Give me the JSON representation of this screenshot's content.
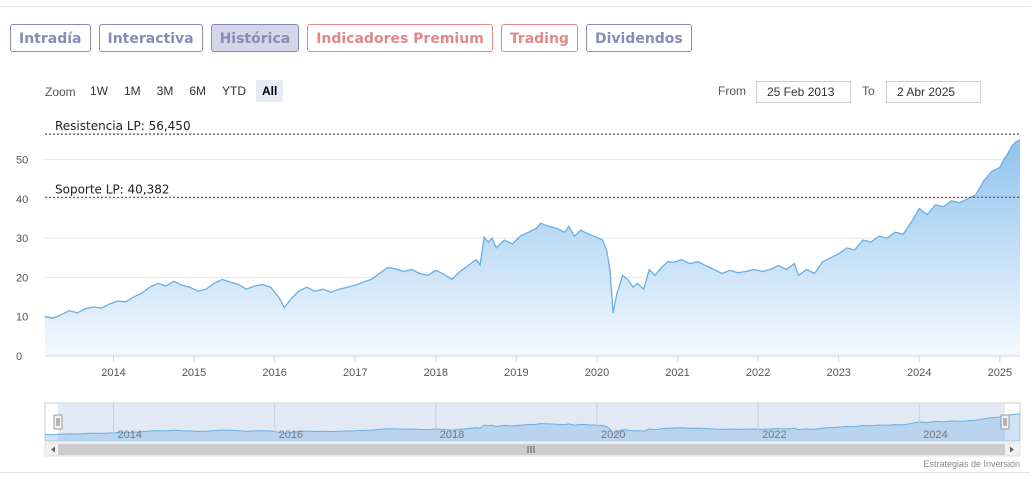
{
  "tabs": [
    {
      "label": "Intradía",
      "color": "#8a8ab8",
      "active": false
    },
    {
      "label": "Interactiva",
      "color": "#8a8ab8",
      "active": false
    },
    {
      "label": "Histórica",
      "color": "#8a8ab8",
      "active": true
    },
    {
      "label": "Indicadores Premium",
      "color": "#e0898a",
      "active": false
    },
    {
      "label": "Trading",
      "color": "#e0898a",
      "active": false
    },
    {
      "label": "Dividendos",
      "color": "#8a8ab8",
      "active": false
    }
  ],
  "zoom": {
    "label": "Zoom",
    "buttons": [
      "1W",
      "1M",
      "3M",
      "6M",
      "YTD",
      "All"
    ],
    "active": "All"
  },
  "range": {
    "from_label": "From",
    "from_value": "25 Feb 2013",
    "to_label": "To",
    "to_value": "2 Abr 2025"
  },
  "credit": "Estrategias de Inversión",
  "colors": {
    "line": "#6aaee3",
    "area_top": "#8fc3ee",
    "area_bottom": "#f4f9fe",
    "navigator_bg": "#dbe3f2",
    "navigator_line": "#6aaee3",
    "resistance": "#222222",
    "support": "#8a1c2c"
  },
  "chart_data": {
    "type": "area",
    "ylim": [
      0,
      57
    ],
    "y_ticks": [
      0,
      10,
      20,
      30,
      40,
      50
    ],
    "x_ticks": [
      "2014",
      "2015",
      "2016",
      "2017",
      "2018",
      "2019",
      "2020",
      "2021",
      "2022",
      "2023",
      "2024",
      "2025"
    ],
    "navigator_ticks": [
      "2014",
      "2016",
      "2018",
      "2020",
      "2022",
      "2024"
    ],
    "grid": true,
    "lines": [
      {
        "label": "Resistencia LP: 56,450",
        "value": 56.45,
        "style": "dashed"
      },
      {
        "label": "Soporte LP: 40,382",
        "value": 40.382,
        "style": "dashed"
      }
    ],
    "series": [
      {
        "values": [
          [
            2013.15,
            10.0
          ],
          [
            2013.25,
            9.6
          ],
          [
            2013.35,
            10.5
          ],
          [
            2013.45,
            11.5
          ],
          [
            2013.55,
            11.0
          ],
          [
            2013.65,
            12.0
          ],
          [
            2013.75,
            12.5
          ],
          [
            2013.85,
            12.2
          ],
          [
            2013.95,
            13.2
          ],
          [
            2014.05,
            14.0
          ],
          [
            2014.15,
            13.8
          ],
          [
            2014.25,
            15.0
          ],
          [
            2014.35,
            16.0
          ],
          [
            2014.45,
            17.5
          ],
          [
            2014.55,
            18.5
          ],
          [
            2014.65,
            17.8
          ],
          [
            2014.75,
            19.0
          ],
          [
            2014.85,
            18.0
          ],
          [
            2014.95,
            17.5
          ],
          [
            2015.05,
            16.5
          ],
          [
            2015.15,
            17.0
          ],
          [
            2015.25,
            18.5
          ],
          [
            2015.35,
            19.5
          ],
          [
            2015.45,
            18.8
          ],
          [
            2015.55,
            18.2
          ],
          [
            2015.65,
            17.0
          ],
          [
            2015.75,
            17.8
          ],
          [
            2015.85,
            18.2
          ],
          [
            2015.95,
            17.5
          ],
          [
            2016.05,
            15.0
          ],
          [
            2016.12,
            12.3
          ],
          [
            2016.2,
            14.5
          ],
          [
            2016.3,
            16.5
          ],
          [
            2016.4,
            17.5
          ],
          [
            2016.5,
            16.5
          ],
          [
            2016.6,
            17.0
          ],
          [
            2016.7,
            16.2
          ],
          [
            2016.8,
            17.0
          ],
          [
            2016.9,
            17.5
          ],
          [
            2017.0,
            18.0
          ],
          [
            2017.1,
            18.8
          ],
          [
            2017.2,
            19.5
          ],
          [
            2017.3,
            21.0
          ],
          [
            2017.4,
            22.5
          ],
          [
            2017.5,
            22.2
          ],
          [
            2017.6,
            21.5
          ],
          [
            2017.7,
            22.0
          ],
          [
            2017.8,
            21.0
          ],
          [
            2017.9,
            20.5
          ],
          [
            2018.0,
            21.8
          ],
          [
            2018.1,
            20.8
          ],
          [
            2018.2,
            19.5
          ],
          [
            2018.3,
            21.5
          ],
          [
            2018.4,
            23.0
          ],
          [
            2018.5,
            24.5
          ],
          [
            2018.55,
            23.2
          ],
          [
            2018.6,
            30.2
          ],
          [
            2018.65,
            29.0
          ],
          [
            2018.7,
            30.0
          ],
          [
            2018.75,
            27.5
          ],
          [
            2018.85,
            29.5
          ],
          [
            2018.95,
            28.5
          ],
          [
            2019.05,
            30.5
          ],
          [
            2019.15,
            31.5
          ],
          [
            2019.25,
            32.5
          ],
          [
            2019.3,
            33.8
          ],
          [
            2019.4,
            33.0
          ],
          [
            2019.5,
            32.5
          ],
          [
            2019.6,
            31.5
          ],
          [
            2019.65,
            33.0
          ],
          [
            2019.72,
            30.5
          ],
          [
            2019.8,
            32.0
          ],
          [
            2019.9,
            31.0
          ],
          [
            2020.0,
            30.2
          ],
          [
            2020.07,
            29.5
          ],
          [
            2020.12,
            27.0
          ],
          [
            2020.16,
            22.0
          ],
          [
            2020.2,
            11.0
          ],
          [
            2020.25,
            16.0
          ],
          [
            2020.32,
            20.5
          ],
          [
            2020.38,
            19.5
          ],
          [
            2020.45,
            17.5
          ],
          [
            2020.5,
            18.5
          ],
          [
            2020.58,
            17.0
          ],
          [
            2020.65,
            22.0
          ],
          [
            2020.72,
            20.5
          ],
          [
            2020.8,
            22.5
          ],
          [
            2020.88,
            24.0
          ],
          [
            2020.95,
            23.8
          ],
          [
            2021.05,
            24.5
          ],
          [
            2021.15,
            23.5
          ],
          [
            2021.25,
            24.0
          ],
          [
            2021.35,
            23.0
          ],
          [
            2021.45,
            22.0
          ],
          [
            2021.55,
            21.0
          ],
          [
            2021.65,
            21.8
          ],
          [
            2021.75,
            21.2
          ],
          [
            2021.85,
            21.5
          ],
          [
            2021.95,
            22.0
          ],
          [
            2022.05,
            21.5
          ],
          [
            2022.15,
            22.0
          ],
          [
            2022.25,
            23.0
          ],
          [
            2022.35,
            22.0
          ],
          [
            2022.45,
            23.5
          ],
          [
            2022.5,
            20.5
          ],
          [
            2022.6,
            22.0
          ],
          [
            2022.7,
            21.0
          ],
          [
            2022.8,
            24.0
          ],
          [
            2022.9,
            25.0
          ],
          [
            2023.0,
            26.0
          ],
          [
            2023.1,
            27.5
          ],
          [
            2023.2,
            27.0
          ],
          [
            2023.3,
            29.5
          ],
          [
            2023.4,
            29.0
          ],
          [
            2023.5,
            30.5
          ],
          [
            2023.6,
            30.0
          ],
          [
            2023.7,
            31.5
          ],
          [
            2023.8,
            31.0
          ],
          [
            2023.9,
            34.0
          ],
          [
            2024.0,
            37.5
          ],
          [
            2024.1,
            36.0
          ],
          [
            2024.2,
            38.5
          ],
          [
            2024.3,
            38.0
          ],
          [
            2024.4,
            39.5
          ],
          [
            2024.5,
            39.0
          ],
          [
            2024.6,
            40.0
          ],
          [
            2024.7,
            41.0
          ],
          [
            2024.8,
            44.5
          ],
          [
            2024.9,
            47.0
          ],
          [
            2025.0,
            48.0
          ],
          [
            2025.05,
            50.0
          ],
          [
            2025.1,
            51.5
          ],
          [
            2025.15,
            53.5
          ],
          [
            2025.2,
            54.5
          ],
          [
            2025.25,
            55.0
          ]
        ]
      }
    ]
  }
}
